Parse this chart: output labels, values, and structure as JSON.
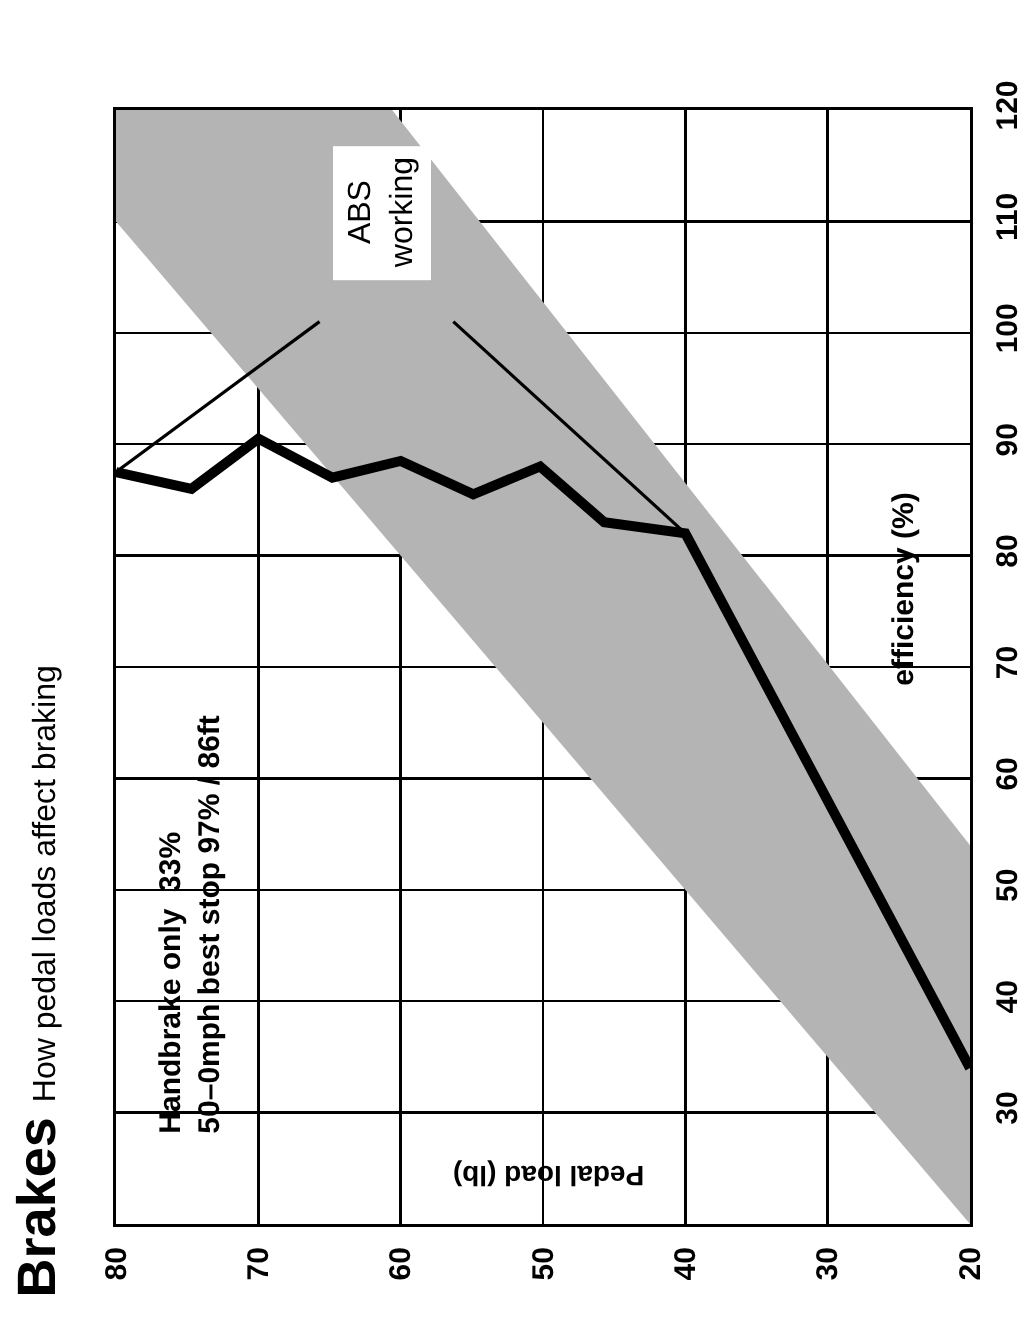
{
  "chart_data": {
    "type": "line",
    "title": "Brakes",
    "subtitle": "How pedal loads affect braking",
    "xlabel": "Pedal load (lb)",
    "ylabel": "efficiency (%)",
    "xlim": [
      80,
      20
    ],
    "xticks": [
      80,
      70,
      60,
      50,
      40,
      30,
      20
    ],
    "ylim": [
      20,
      120
    ],
    "yticks": [
      30,
      40,
      50,
      60,
      70,
      80,
      90,
      100,
      110,
      120
    ],
    "grid": true,
    "series": [
      {
        "type": "area",
        "color": "#b4b4b4",
        "x": [
          20,
          60.6,
          80,
          80,
          20,
          20
        ],
        "values": [
          54,
          120,
          120,
          110,
          20,
          54
        ]
      },
      {
        "color": "#000000",
        "x": [
          80,
          74.7,
          70,
          64.8,
          60,
          54.9,
          50.2,
          45.7,
          40,
          20
        ],
        "values": [
          87.5,
          86,
          90.5,
          87,
          88.5,
          85.5,
          88,
          83,
          82,
          34
        ]
      },
      {
        "color": "#000000",
        "x": [
          80,
          65.7,
          null,
          56.3,
          40
        ],
        "values": [
          87.5,
          101,
          null,
          101,
          82
        ]
      }
    ],
    "annotations": [
      "Handbrake only  33%\n50–0mph best stop 97% / 86ft",
      "ABS\nworking"
    ]
  }
}
